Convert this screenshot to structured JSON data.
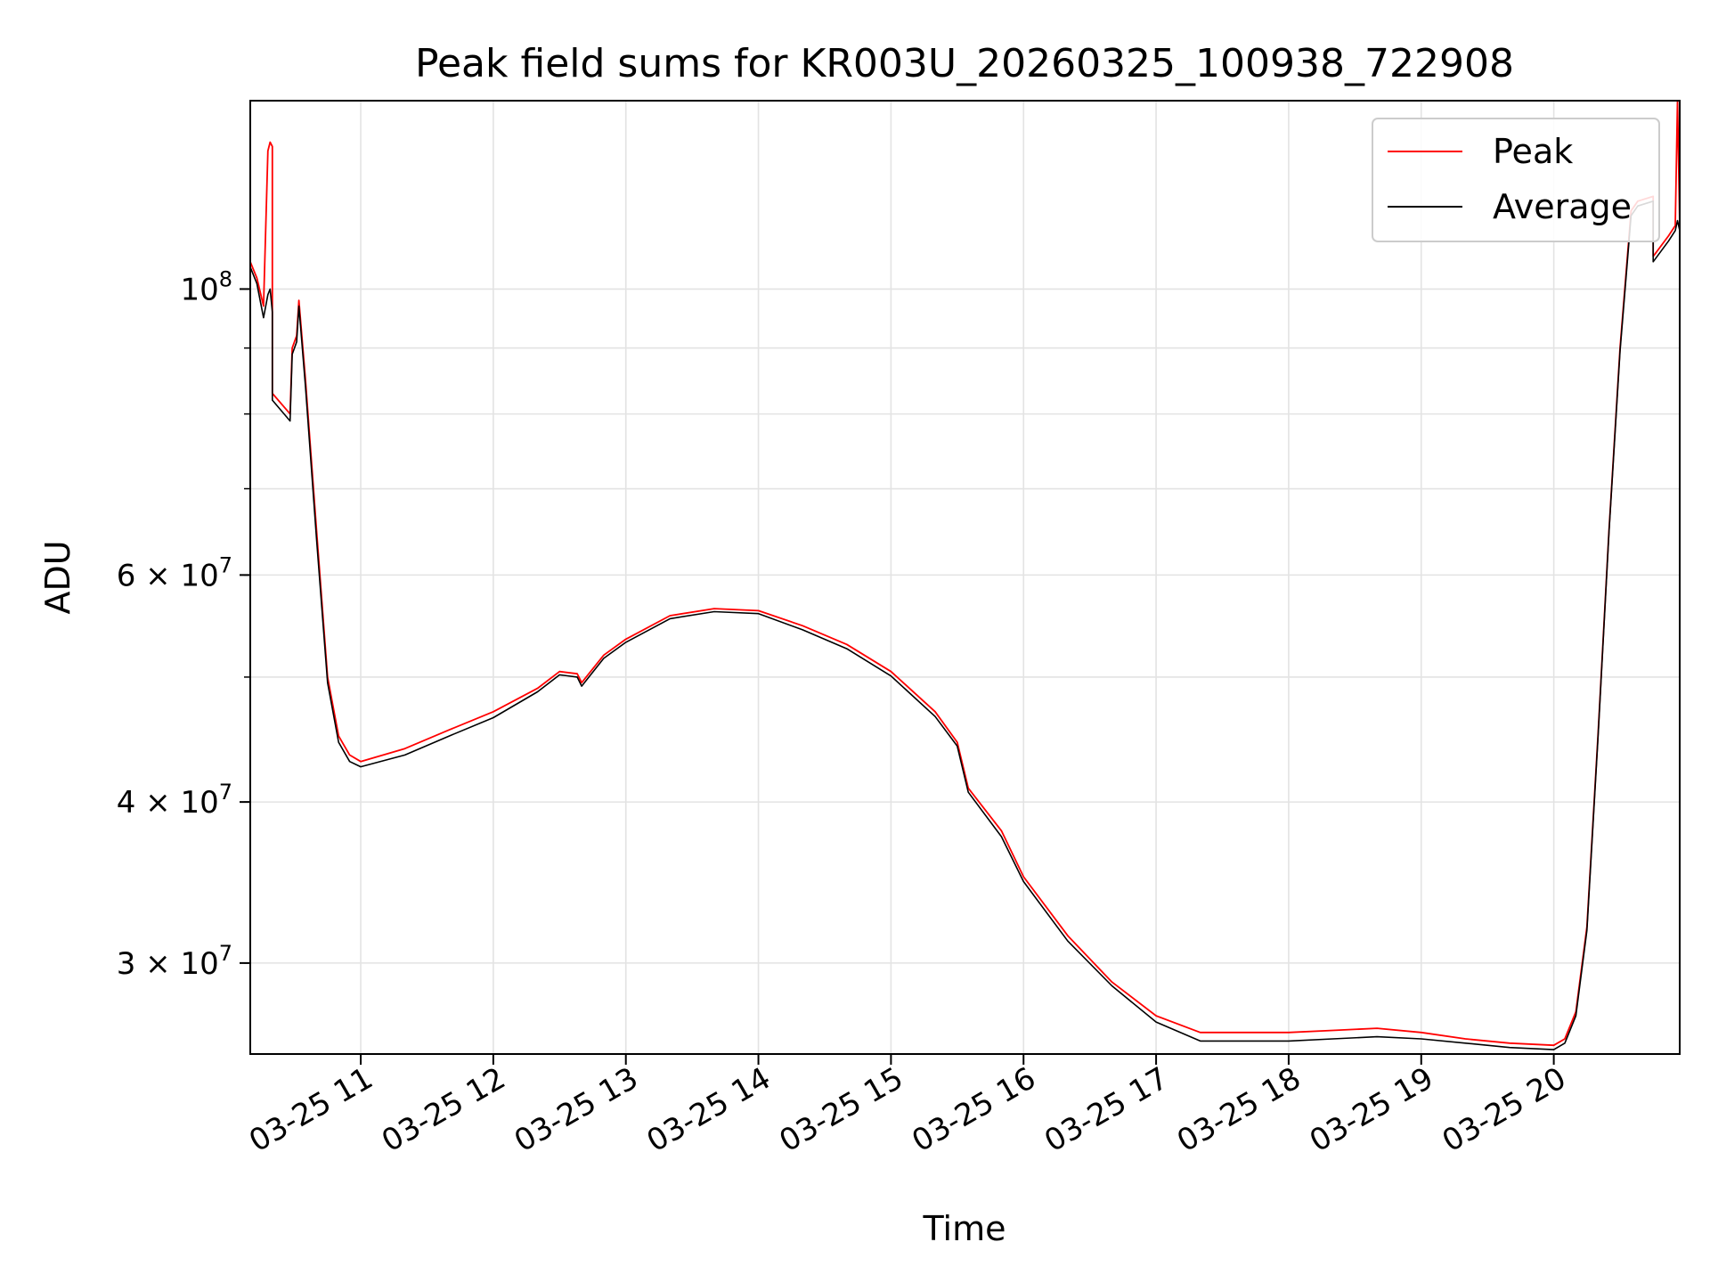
{
  "chart_data": {
    "type": "line",
    "title": "Peak field sums for KR003U_20260325_100938_722908",
    "xlabel": "Time",
    "ylabel": "ADU",
    "y_scale": "log",
    "ylim": [
      25500000,
      140000000
    ],
    "xlim": [
      "2026-03-25 10:10",
      "2026-03-25 20:57"
    ],
    "grid": true,
    "legend_position": "top-right",
    "x_ticks": [
      {
        "at": "2026-03-25 11:00",
        "label": "03-25 11"
      },
      {
        "at": "2026-03-25 12:00",
        "label": "03-25 12"
      },
      {
        "at": "2026-03-25 13:00",
        "label": "03-25 13"
      },
      {
        "at": "2026-03-25 14:00",
        "label": "03-25 14"
      },
      {
        "at": "2026-03-25 15:00",
        "label": "03-25 15"
      },
      {
        "at": "2026-03-25 16:00",
        "label": "03-25 16"
      },
      {
        "at": "2026-03-25 17:00",
        "label": "03-25 17"
      },
      {
        "at": "2026-03-25 18:00",
        "label": "03-25 18"
      },
      {
        "at": "2026-03-25 19:00",
        "label": "03-25 19"
      },
      {
        "at": "2026-03-25 20:00",
        "label": "03-25 20"
      }
    ],
    "y_ticks": [
      {
        "value": 100000000,
        "base": "10",
        "exp": "8"
      },
      {
        "value": 60000000,
        "base": "6 × 10",
        "exp": "7"
      },
      {
        "value": 40000000,
        "base": "4 × 10",
        "exp": "7"
      },
      {
        "value": 30000000,
        "base": "3 × 10",
        "exp": "7"
      }
    ],
    "series": [
      {
        "name": "Peak",
        "color": "#ff0000",
        "points": [
          [
            "2026-03-25 10:10",
            105000000
          ],
          [
            "2026-03-25 10:13",
            102000000
          ],
          [
            "2026-03-25 10:16",
            97000000
          ],
          [
            "2026-03-25 10:18",
            128000000
          ],
          [
            "2026-03-25 10:19",
            130000000
          ],
          [
            "2026-03-25 10:20",
            129000000
          ],
          [
            "2026-03-25 10:20",
            83000000
          ],
          [
            "2026-03-25 10:28",
            80000000
          ],
          [
            "2026-03-25 10:29",
            90000000
          ],
          [
            "2026-03-25 10:31",
            92000000
          ],
          [
            "2026-03-25 10:32",
            98000000
          ],
          [
            "2026-03-25 10:35",
            85000000
          ],
          [
            "2026-03-25 10:40",
            65000000
          ],
          [
            "2026-03-25 10:45",
            50000000
          ],
          [
            "2026-03-25 10:50",
            45000000
          ],
          [
            "2026-03-25 10:55",
            43500000
          ],
          [
            "2026-03-25 11:00",
            43000000
          ],
          [
            "2026-03-25 11:20",
            44000000
          ],
          [
            "2026-03-25 11:40",
            45500000
          ],
          [
            "2026-03-25 12:00",
            47000000
          ],
          [
            "2026-03-25 12:20",
            49000000
          ],
          [
            "2026-03-25 12:30",
            50500000
          ],
          [
            "2026-03-25 12:38",
            50300000
          ],
          [
            "2026-03-25 12:40",
            49500000
          ],
          [
            "2026-03-25 12:50",
            52000000
          ],
          [
            "2026-03-25 13:00",
            53500000
          ],
          [
            "2026-03-25 13:20",
            55800000
          ],
          [
            "2026-03-25 13:40",
            56500000
          ],
          [
            "2026-03-25 14:00",
            56300000
          ],
          [
            "2026-03-25 14:20",
            54800000
          ],
          [
            "2026-03-25 14:40",
            53000000
          ],
          [
            "2026-03-25 15:00",
            50500000
          ],
          [
            "2026-03-25 15:20",
            47000000
          ],
          [
            "2026-03-25 15:30",
            44500000
          ],
          [
            "2026-03-25 15:35",
            41000000
          ],
          [
            "2026-03-25 15:50",
            38000000
          ],
          [
            "2026-03-25 16:00",
            35000000
          ],
          [
            "2026-03-25 16:20",
            31500000
          ],
          [
            "2026-03-25 16:40",
            29000000
          ],
          [
            "2026-03-25 17:00",
            27300000
          ],
          [
            "2026-03-25 17:20",
            26500000
          ],
          [
            "2026-03-25 17:40",
            26500000
          ],
          [
            "2026-03-25 18:00",
            26500000
          ],
          [
            "2026-03-25 18:20",
            26600000
          ],
          [
            "2026-03-25 18:40",
            26700000
          ],
          [
            "2026-03-25 19:00",
            26500000
          ],
          [
            "2026-03-25 19:20",
            26200000
          ],
          [
            "2026-03-25 19:40",
            26000000
          ],
          [
            "2026-03-25 20:00",
            25900000
          ],
          [
            "2026-03-25 20:05",
            26200000
          ],
          [
            "2026-03-25 20:10",
            27500000
          ],
          [
            "2026-03-25 20:15",
            32000000
          ],
          [
            "2026-03-25 20:20",
            45000000
          ],
          [
            "2026-03-25 20:25",
            65000000
          ],
          [
            "2026-03-25 20:30",
            90000000
          ],
          [
            "2026-03-25 20:35",
            115000000
          ],
          [
            "2026-03-25 20:38",
            117000000
          ],
          [
            "2026-03-25 20:45",
            118000000
          ],
          [
            "2026-03-25 20:45",
            106000000
          ],
          [
            "2026-03-25 20:52",
            110000000
          ],
          [
            "2026-03-25 20:55",
            112000000
          ],
          [
            "2026-03-25 20:56",
            140000000
          ],
          [
            "2026-03-25 20:57",
            112000000
          ]
        ]
      },
      {
        "name": "Average",
        "color": "#000000",
        "points": [
          [
            "2026-03-25 10:10",
            104000000
          ],
          [
            "2026-03-25 10:13",
            101000000
          ],
          [
            "2026-03-25 10:16",
            95000000
          ],
          [
            "2026-03-25 10:18",
            99000000
          ],
          [
            "2026-03-25 10:19",
            100000000
          ],
          [
            "2026-03-25 10:20",
            96000000
          ],
          [
            "2026-03-25 10:20",
            82000000
          ],
          [
            "2026-03-25 10:28",
            79000000
          ],
          [
            "2026-03-25 10:29",
            89000000
          ],
          [
            "2026-03-25 10:31",
            91000000
          ],
          [
            "2026-03-25 10:32",
            97000000
          ],
          [
            "2026-03-25 10:35",
            84000000
          ],
          [
            "2026-03-25 10:40",
            64000000
          ],
          [
            "2026-03-25 10:45",
            49500000
          ],
          [
            "2026-03-25 10:50",
            44500000
          ],
          [
            "2026-03-25 10:55",
            43000000
          ],
          [
            "2026-03-25 11:00",
            42600000
          ],
          [
            "2026-03-25 11:20",
            43500000
          ],
          [
            "2026-03-25 11:40",
            45000000
          ],
          [
            "2026-03-25 12:00",
            46500000
          ],
          [
            "2026-03-25 12:20",
            48700000
          ],
          [
            "2026-03-25 12:30",
            50200000
          ],
          [
            "2026-03-25 12:38",
            50000000
          ],
          [
            "2026-03-25 12:40",
            49200000
          ],
          [
            "2026-03-25 12:50",
            51700000
          ],
          [
            "2026-03-25 13:00",
            53200000
          ],
          [
            "2026-03-25 13:20",
            55500000
          ],
          [
            "2026-03-25 13:40",
            56200000
          ],
          [
            "2026-03-25 14:00",
            56000000
          ],
          [
            "2026-03-25 14:20",
            54400000
          ],
          [
            "2026-03-25 14:40",
            52600000
          ],
          [
            "2026-03-25 15:00",
            50100000
          ],
          [
            "2026-03-25 15:20",
            46600000
          ],
          [
            "2026-03-25 15:30",
            44200000
          ],
          [
            "2026-03-25 15:35",
            40700000
          ],
          [
            "2026-03-25 15:50",
            37600000
          ],
          [
            "2026-03-25 16:00",
            34700000
          ],
          [
            "2026-03-25 16:20",
            31200000
          ],
          [
            "2026-03-25 16:40",
            28800000
          ],
          [
            "2026-03-25 17:00",
            27000000
          ],
          [
            "2026-03-25 17:20",
            26100000
          ],
          [
            "2026-03-25 17:40",
            26100000
          ],
          [
            "2026-03-25 18:00",
            26100000
          ],
          [
            "2026-03-25 18:20",
            26200000
          ],
          [
            "2026-03-25 18:40",
            26300000
          ],
          [
            "2026-03-25 19:00",
            26200000
          ],
          [
            "2026-03-25 19:20",
            26000000
          ],
          [
            "2026-03-25 19:40",
            25800000
          ],
          [
            "2026-03-25 20:00",
            25700000
          ],
          [
            "2026-03-25 20:05",
            26000000
          ],
          [
            "2026-03-25 20:10",
            27300000
          ],
          [
            "2026-03-25 20:15",
            31800000
          ],
          [
            "2026-03-25 20:20",
            44800000
          ],
          [
            "2026-03-25 20:25",
            64800000
          ],
          [
            "2026-03-25 20:30",
            89500000
          ],
          [
            "2026-03-25 20:35",
            114000000
          ],
          [
            "2026-03-25 20:38",
            116000000
          ],
          [
            "2026-03-25 20:45",
            117000000
          ],
          [
            "2026-03-25 20:45",
            105000000
          ],
          [
            "2026-03-25 20:52",
            109000000
          ],
          [
            "2026-03-25 20:55",
            111000000
          ],
          [
            "2026-03-25 20:56",
            113000000
          ],
          [
            "2026-03-25 20:57",
            111000000
          ]
        ]
      }
    ]
  }
}
